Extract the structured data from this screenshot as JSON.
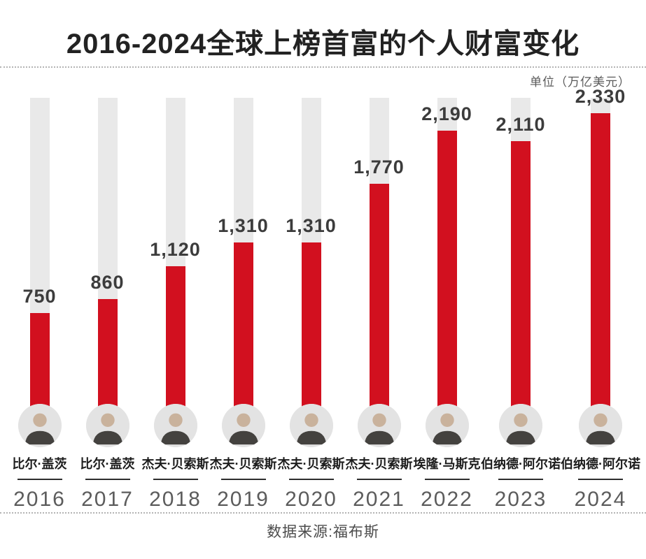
{
  "header": {
    "title": "2016-2024全球上榜首富的个人财富变化",
    "unit_label": "单位（万亿美元）"
  },
  "footer": {
    "source": "数据来源:福布斯"
  },
  "colors": {
    "bar_red": "#d2101f",
    "track_gray": "#e9e9e9",
    "title_text": "#222222",
    "value_text": "#3c3c3c",
    "year_text": "#5c5c5c"
  },
  "chart_data": {
    "type": "bar",
    "title": "2016-2024全球上榜首富的个人财富变化",
    "unit": "单位（万亿美元）",
    "source": "数据来源:福布斯",
    "categories": [
      "2016",
      "2017",
      "2018",
      "2019",
      "2020",
      "2021",
      "2022",
      "2023",
      "2024"
    ],
    "values": [
      750,
      860,
      1120,
      1310,
      1310,
      1770,
      2190,
      2110,
      2330
    ],
    "value_labels": [
      "750",
      "860",
      "1,120",
      "1,310",
      "1,310",
      "1,770",
      "2,190",
      "2,110",
      "2,330"
    ],
    "richest_person": [
      "比尔·盖茨",
      "比尔·盖茨",
      "杰夫·贝索斯",
      "杰夫·贝索斯",
      "杰夫·贝索斯",
      "杰夫·贝索斯",
      "埃隆·马斯克",
      "伯纳德·阿尔诺",
      "伯纳德·阿尔诺"
    ],
    "xlabel": "",
    "ylabel": "",
    "ylim": [
      0,
      2450
    ],
    "grid": false,
    "legend": false,
    "bar_color": "#d2101f",
    "track_color": "#e9e9e9"
  }
}
